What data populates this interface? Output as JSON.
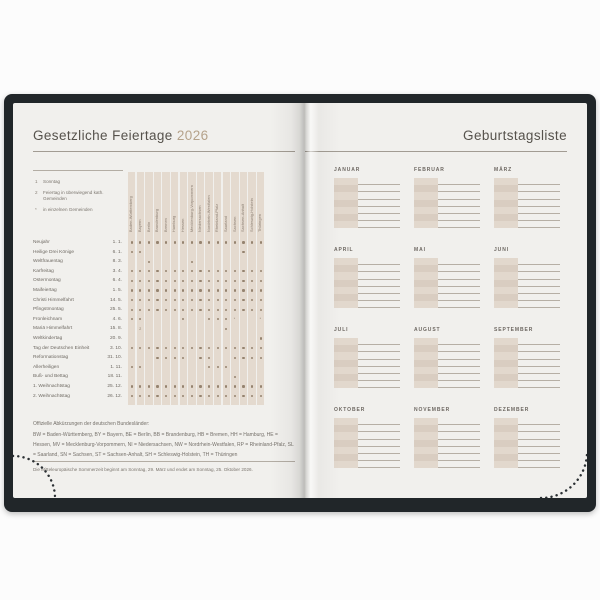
{
  "left_page": {
    "title": "Gesetzliche Feiertage",
    "year": "2026",
    "legend": [
      {
        "symbol": "1",
        "label": "Sonntag"
      },
      {
        "symbol": "2",
        "label": "Feiertag in überwiegend kath. Gemeinden"
      },
      {
        "symbol": "*",
        "label": "in einzelnen Gemeinden"
      }
    ],
    "states": [
      "Baden-Württemberg",
      "Bayern",
      "Berlin",
      "Brandenburg",
      "Bremen",
      "Hamburg",
      "Hessen",
      "Mecklenburg-Vorpommern",
      "Niedersachsen",
      "Nordrhein-Westfalen",
      "Rheinland-Pfalz",
      "Saarland",
      "Sachsen",
      "Sachsen-Anhalt",
      "Schleswig-Holstein",
      "Thüringen"
    ],
    "holidays": [
      {
        "name": "Neujahr",
        "date": "1. 1.",
        "marks": "1111111111111111"
      },
      {
        "name": "Heilige Drei Könige",
        "date": "6. 1.",
        "marks": "1100000000000100"
      },
      {
        "name": "Weltfrauentag",
        "date": "8. 3.",
        "marks": "0010000100000000"
      },
      {
        "name": "Karfreitag",
        "date": "3. 4.",
        "marks": "1111111111111111"
      },
      {
        "name": "Ostermontag",
        "date": "6. 4.",
        "marks": "1111111111111111"
      },
      {
        "name": "Maifeiertag",
        "date": "1. 5.",
        "marks": "1111111111111111"
      },
      {
        "name": "Christi Himmelfahrt",
        "date": "14. 5.",
        "marks": "1111111111111111"
      },
      {
        "name": "Pfingstmontag",
        "date": "25. 5.",
        "marks": "1111111111111111"
      },
      {
        "name": "Fronleichnam",
        "date": "4. 6.",
        "marks": "1100001001113003"
      },
      {
        "name": "Mariä Himmelfahrt",
        "date": "15. 8.",
        "marks": "0200000000010000"
      },
      {
        "name": "Weltkindertag",
        "date": "20. 9.",
        "marks": "0000000000000001"
      },
      {
        "name": "Tag der Deutschen Einheit",
        "date": "3. 10.",
        "marks": "1111111111111111"
      },
      {
        "name": "Reformationstag",
        "date": "31. 10.",
        "marks": "0001111011001111"
      },
      {
        "name": "Allerheiligen",
        "date": "1. 11.",
        "marks": "1100000001110000"
      },
      {
        "name": "Buß- und Bettag",
        "date": "18. 11.",
        "marks": "0000000000001000"
      },
      {
        "name": "1. Weihnachtstag",
        "date": "25. 12.",
        "marks": "1111111111111111"
      },
      {
        "name": "2. Weihnachtstag",
        "date": "26. 12.",
        "marks": "1111111111111111"
      }
    ],
    "abbreviations_title": "Offizielle Abkürzungen der deutschen Bundesländer:",
    "abbreviations": "BW = Baden-Württemberg, BY = Bayern, BE = Berlin, BB = Brandenburg, HB = Bremen, HH = Hamburg, HE = Hessen, MV = Mecklenburg-Vorpommern, NI = Niedersachsen, NW = Nordrhein-Westfalen, RP = Rheinland-Pfalz, SL = Saarland, SN = Sachsen, ST = Sachsen-Anhalt, SH = Schleswig-Holstein, TH = Thüringen",
    "summertime_note": "Die Mitteleuropäische Sommerzeit beginnt am Sonntag, 29. März und endet am Sonntag, 25. Oktober 2026."
  },
  "right_page": {
    "title": "Geburtstagsliste",
    "months": [
      "JANUAR",
      "FEBRUAR",
      "MÄRZ",
      "APRIL",
      "MAI",
      "JUNI",
      "JULI",
      "AUGUST",
      "SEPTEMBER",
      "OKTOBER",
      "NOVEMBER",
      "DEZEMBER"
    ],
    "rows_per_month": 7
  },
  "colors": {
    "cover": "#212629",
    "page": "#f1f0ed",
    "table_fill": "#e4dacf",
    "table_fill_alt": "#d9cdc1",
    "title_text": "#56524c",
    "year_accent": "#b5a28a",
    "mark_dot": "#95836f"
  }
}
